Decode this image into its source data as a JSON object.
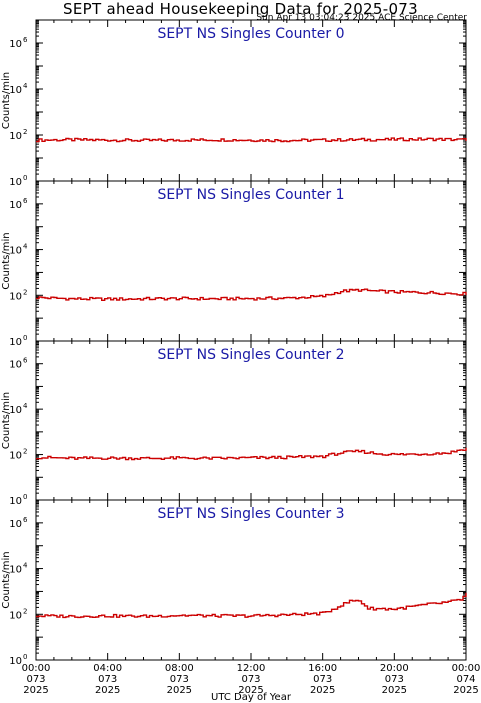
{
  "header": {
    "title": "SEPT ahead Housekeeping Data for 2025-073",
    "timestamp": "Sun Apr 13 03:04:23 2025 ACE Science Center"
  },
  "colors": {
    "trace": "#cc0000",
    "panel_title": "#1a1aa6",
    "axes": "#000000"
  },
  "x_axis": {
    "label": "UTC Day of Year",
    "ticks": [
      {
        "hour": 0,
        "lines": [
          "00:00",
          "073",
          "2025"
        ]
      },
      {
        "hour": 4,
        "lines": [
          "04:00",
          "073",
          "2025"
        ]
      },
      {
        "hour": 8,
        "lines": [
          "08:00",
          "073",
          "2025"
        ]
      },
      {
        "hour": 12,
        "lines": [
          "12:00",
          "073",
          "2025"
        ]
      },
      {
        "hour": 16,
        "lines": [
          "16:00",
          "073",
          "2025"
        ]
      },
      {
        "hour": 20,
        "lines": [
          "20:00",
          "073",
          "2025"
        ]
      },
      {
        "hour": 24,
        "lines": [
          "00:00",
          "074",
          "2025"
        ]
      }
    ]
  },
  "chart_data": [
    {
      "type": "line",
      "title": "SEPT NS Singles Counter 0",
      "ylabel": "Counts/min",
      "yscale": "log",
      "ylim": [
        1,
        10000000
      ],
      "ytick_exponents": [
        0,
        2,
        4,
        6
      ],
      "xlim_hours": [
        0,
        24
      ],
      "series": [
        {
          "x_hours": [
            0,
            2,
            4,
            6,
            8,
            10,
            12,
            14,
            16,
            18,
            20,
            22,
            24
          ],
          "values": [
            60,
            62,
            60,
            58,
            60,
            62,
            60,
            58,
            60,
            62,
            64,
            66,
            62
          ]
        }
      ]
    },
    {
      "type": "line",
      "title": "SEPT NS Singles Counter 1",
      "ylabel": "Counts/min",
      "yscale": "log",
      "ylim": [
        1,
        10000000
      ],
      "ytick_exponents": [
        0,
        2,
        4,
        6
      ],
      "xlim_hours": [
        0,
        24
      ],
      "series": [
        {
          "x_hours": [
            0,
            2,
            4,
            6,
            8,
            10,
            12,
            14,
            16,
            17,
            18,
            19,
            20,
            22,
            24
          ],
          "values": [
            80,
            70,
            68,
            70,
            72,
            70,
            72,
            75,
            90,
            150,
            170,
            150,
            140,
            130,
            115
          ]
        }
      ]
    },
    {
      "type": "line",
      "title": "SEPT NS Singles Counter 2",
      "ylabel": "Counts/min",
      "yscale": "log",
      "ylim": [
        1,
        10000000
      ],
      "ytick_exponents": [
        0,
        2,
        4,
        6
      ],
      "xlim_hours": [
        0,
        24
      ],
      "series": [
        {
          "x_hours": [
            0,
            2,
            4,
            6,
            8,
            10,
            12,
            14,
            16,
            17,
            18,
            19,
            20,
            22,
            23,
            24
          ],
          "values": [
            75,
            68,
            70,
            68,
            70,
            68,
            72,
            75,
            85,
            120,
            140,
            110,
            100,
            110,
            120,
            190
          ]
        }
      ]
    },
    {
      "type": "line",
      "title": "SEPT NS Singles Counter 3",
      "ylabel": "Counts/min",
      "yscale": "log",
      "ylim": [
        1,
        10000000
      ],
      "ytick_exponents": [
        0,
        2,
        4,
        6
      ],
      "xlim_hours": [
        0,
        24
      ],
      "series": [
        {
          "x_hours": [
            0,
            2,
            4,
            6,
            8,
            10,
            12,
            14,
            16,
            17,
            17.5,
            18,
            18.5,
            20,
            21,
            22,
            23,
            23.7,
            24
          ],
          "values": [
            85,
            82,
            85,
            82,
            90,
            85,
            85,
            95,
            110,
            250,
            380,
            400,
            180,
            170,
            220,
            280,
            340,
            450,
            800
          ]
        }
      ]
    }
  ]
}
